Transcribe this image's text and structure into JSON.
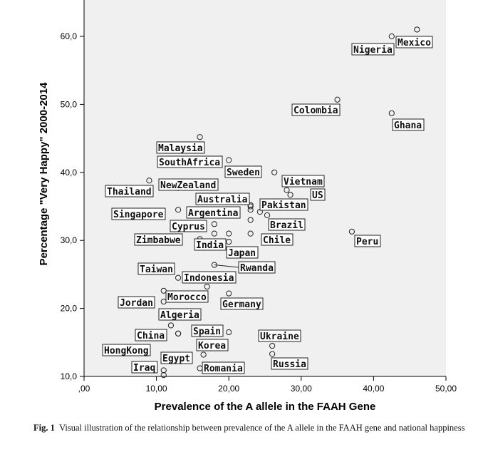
{
  "chart_data": {
    "type": "scatter",
    "xlabel": "Prevalence of the A allele in the FAAH Gene",
    "ylabel": "Percentage \"Very Happy\" 2000-2014",
    "xlim": [
      0,
      50
    ],
    "ylim": [
      10,
      65
    ],
    "xticks": [
      ",00",
      "10,00",
      "20,00",
      "30,00",
      "40,00",
      "50,00"
    ],
    "yticks": [
      "10,0",
      "20,0",
      "30,0",
      "40,0",
      "50,0",
      "60,0"
    ],
    "grid": false,
    "points": [
      {
        "label": "Mexico",
        "x": 46.0,
        "y": 61.0
      },
      {
        "label": "Nigeria",
        "x": 42.5,
        "y": 60.0
      },
      {
        "label": "Colombia",
        "x": 35.0,
        "y": 50.7
      },
      {
        "label": "Ghana",
        "x": 42.5,
        "y": 48.7
      },
      {
        "label": "Malaysia",
        "x": 16.0,
        "y": 45.2
      },
      {
        "label": "SouthAfrica",
        "x": 20.0,
        "y": 41.8
      },
      {
        "label": "Sweden",
        "x": 26.3,
        "y": 40.0
      },
      {
        "label": "Thailand",
        "x": 9.0,
        "y": 38.8
      },
      {
        "label": "NewZealand",
        "x": 13.0,
        "y": 37.7
      },
      {
        "label": "Vietnam",
        "x": 28.0,
        "y": 37.4
      },
      {
        "label": "US",
        "x": 28.5,
        "y": 36.7
      },
      {
        "label": "Australia",
        "x": 23.0,
        "y": 35.0
      },
      {
        "label": "Pakistan",
        "x": 24.3,
        "y": 34.2
      },
      {
        "label": "Singapore",
        "x": 13.0,
        "y": 34.5
      },
      {
        "label": "Argentina",
        "x": 23.0,
        "y": 34.5
      },
      {
        "label": "Brazil",
        "x": 25.3,
        "y": 33.7
      },
      {
        "label": "Cyprus",
        "x": 18.0,
        "y": 32.4
      },
      {
        "label": "Peru",
        "x": 37.0,
        "y": 31.3
      },
      {
        "label": "Zimbabwe",
        "x": 16.0,
        "y": 30.2
      },
      {
        "label": "India",
        "x": 18.0,
        "y": 31.0
      },
      {
        "label": "Chile",
        "x": 23.0,
        "y": 31.0
      },
      {
        "label": "Japan",
        "x": 20.0,
        "y": 31.0
      },
      {
        "label": "Rwanda",
        "x": 18.0,
        "y": 26.4
      },
      {
        "label": "Taiwan",
        "x": 13.0,
        "y": 24.5
      },
      {
        "label": "Indonesia",
        "x": 17.0,
        "y": 23.2
      },
      {
        "label": "Morocco",
        "x": 11.0,
        "y": 22.6
      },
      {
        "label": "Germany",
        "x": 20.0,
        "y": 22.2
      },
      {
        "label": "Jordan",
        "x": 11.0,
        "y": 21.0
      },
      {
        "label": "Algeria",
        "x": 12.0,
        "y": 17.5
      },
      {
        "label": "China",
        "x": 13.0,
        "y": 16.3
      },
      {
        "label": "Spain",
        "x": 20.0,
        "y": 16.5
      },
      {
        "label": "Ukraine",
        "x": 26.0,
        "y": 14.5
      },
      {
        "label": "Korea",
        "x": 17.0,
        "y": 14.5
      },
      {
        "label": "HongKong",
        "x": 11.0,
        "y": 13.0
      },
      {
        "label": "Egypt",
        "x": 16.5,
        "y": 13.2
      },
      {
        "label": "Russia",
        "x": 26.0,
        "y": 13.3
      },
      {
        "label": "Iraq",
        "x": 11.0,
        "y": 10.9
      },
      {
        "label": "Romania",
        "x": 16.0,
        "y": 11.2
      }
    ],
    "extra_markers": [
      {
        "x": 11.0,
        "y": 10.2
      },
      {
        "x": 13.0,
        "y": 16.3
      },
      {
        "x": 23.0,
        "y": 33.0
      },
      {
        "x": 20.0,
        "y": 29.8
      },
      {
        "x": 23.0,
        "y": 35.2
      }
    ]
  },
  "caption": {
    "label": "Fig. 1",
    "text": "Visual illustration of the relationship between prevalence of the A allele in the FAAH gene and national happiness"
  }
}
